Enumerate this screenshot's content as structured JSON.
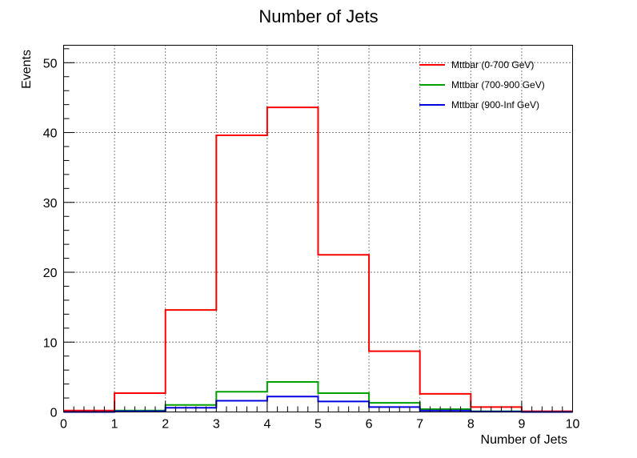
{
  "chart_data": {
    "type": "histogram",
    "title": "Number of Jets",
    "xlabel": "Number of Jets",
    "ylabel": "Events",
    "xlim": [
      0,
      10
    ],
    "ylim": [
      0,
      52.5
    ],
    "x_ticks": [
      0,
      1,
      2,
      3,
      4,
      5,
      6,
      7,
      8,
      9,
      10
    ],
    "y_ticks": [
      0,
      10,
      20,
      30,
      40,
      50
    ],
    "bin_edges": [
      0,
      1,
      2,
      3,
      4,
      5,
      6,
      7,
      8,
      9,
      10
    ],
    "grid": true,
    "legend_position": "top-right",
    "series": [
      {
        "name": "Mttbar (0-700 GeV)",
        "color": "#ff0000",
        "values": [
          0.2,
          2.7,
          14.6,
          39.6,
          43.6,
          22.5,
          8.7,
          2.6,
          0.7,
          0.1
        ]
      },
      {
        "name": "Mttbar (700-900 GeV)",
        "color": "#00a000",
        "values": [
          0.0,
          0.2,
          1.0,
          2.9,
          4.3,
          2.7,
          1.3,
          0.4,
          0.1,
          0.0
        ]
      },
      {
        "name": "Mttbar (900-Inf GeV)",
        "color": "#0000e0",
        "values": [
          0.0,
          0.1,
          0.6,
          1.6,
          2.2,
          1.5,
          0.7,
          0.2,
          0.05,
          0.0
        ]
      }
    ]
  }
}
